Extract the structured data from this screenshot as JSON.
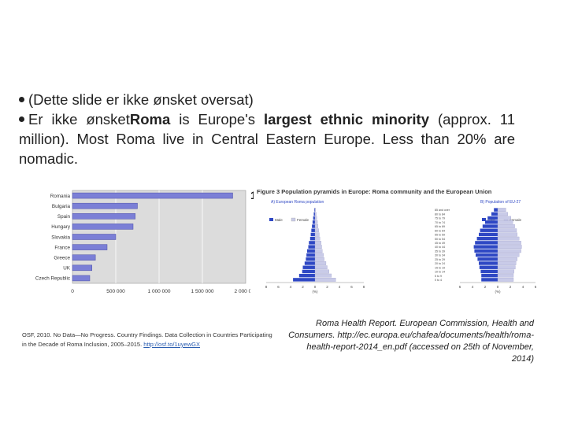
{
  "bullets": {
    "line1": "(Dette slide er ikke ønsket oversat)",
    "line2_prefix": "Er ikke ønsket",
    "line2_bold1": "Roma",
    "line2_mid": " is Europe's ",
    "line2_bold2": "largest ethnic minority",
    "line2_suffix": " (approx. 11 million). Most Roma live in Central Eastern Europe. Less than 20% are nomadic."
  },
  "stray_char": "1",
  "chart_data": [
    {
      "type": "bar",
      "orientation": "horizontal",
      "categories": [
        "Romania",
        "Bulgaria",
        "Spain",
        "Hungary",
        "Slovakia",
        "France",
        "Greece",
        "UK",
        "Czech Republic"
      ],
      "values": [
        1850000,
        750000,
        725000,
        700000,
        500000,
        400000,
        265000,
        225000,
        200000
      ],
      "xlim": [
        0,
        2000000
      ],
      "xticks": [
        "0",
        "500 000",
        "1 000 000",
        "1 500 000",
        "2 000 000"
      ],
      "grid": true,
      "bar_color": "#7b7fd6"
    },
    {
      "type": "bar",
      "title": "Figure 3 Population pyramids in Europe: Roma community and the European Union",
      "panels": [
        {
          "title": "A) European Roma population",
          "legend": [
            "Male",
            "Female"
          ],
          "male": [
            3.6,
            2.6,
            2.1,
            2.0,
            1.7,
            1.5,
            1.4,
            1.3,
            1.1,
            1.0,
            0.8,
            0.7,
            0.6,
            0.5,
            0.4,
            0.3,
            0.2,
            0.1
          ],
          "female": [
            3.4,
            2.7,
            2.3,
            2.0,
            1.8,
            1.5,
            1.4,
            1.2,
            1.1,
            1.0,
            0.8,
            0.7,
            0.6,
            0.5,
            0.4,
            0.3,
            0.2,
            0.1
          ],
          "xticks": [
            "8",
            "6",
            "4",
            "2",
            "0",
            "2",
            "4",
            "6",
            "8"
          ],
          "xlabel": "(%)"
        },
        {
          "title": "B) Population of EU-27",
          "legend": [
            "Male",
            "Female"
          ],
          "age_groups": [
            "0 to 4",
            "5 to 9",
            "10 to 14",
            "15 to 19",
            "20 to 24",
            "25 to 29",
            "30 to 34",
            "35 to 39",
            "40 to 44",
            "45 to 49",
            "50 to 54",
            "55 to 59",
            "60 to 64",
            "65 to 69",
            "70 to 74",
            "75 to 79",
            "80 to 84",
            "85 and over"
          ],
          "male": [
            2.6,
            2.6,
            2.7,
            2.9,
            3.0,
            3.2,
            3.5,
            3.7,
            3.8,
            3.6,
            3.3,
            3.0,
            2.8,
            2.4,
            2.0,
            1.6,
            1.0,
            0.6
          ],
          "female": [
            2.5,
            2.5,
            2.6,
            2.8,
            2.9,
            3.1,
            3.4,
            3.7,
            3.8,
            3.7,
            3.4,
            3.1,
            3.0,
            2.7,
            2.4,
            2.1,
            1.6,
            1.3
          ],
          "xticks": [
            "6",
            "4",
            "2",
            "0",
            "2",
            "4",
            "6"
          ],
          "xlabel": "(%)"
        }
      ],
      "male_color": "#2f48c4",
      "female_color": "#c9cbe8"
    }
  ],
  "captions": {
    "left_text": "OSF, 2010. No Data—No Progress. Country Findings. Data Collection in Countries Participating in the Decade of Roma Inclusion, 2005–2015.",
    "left_link": "http://osf.to/1uyewGX",
    "right": "Roma Health Report. European Commission, Health and Consumers. http://ec.europa.eu/chafea/documents/health/roma-health-report-2014_en.pdf (accessed on 25th of November, 2014)"
  }
}
